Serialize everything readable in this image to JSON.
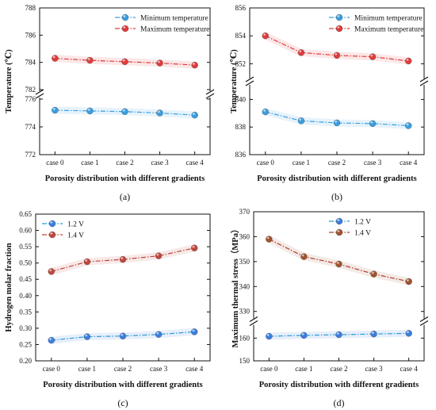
{
  "chart_data": [
    {
      "type": "line",
      "panel_label": "(a)",
      "xlabel": "Porosity distribution with different gradients",
      "ylabel": "Temperature (℃)",
      "categories": [
        "case 0",
        "case 1",
        "case 2",
        "case 3",
        "case 4"
      ],
      "axis_break": true,
      "y_upper": {
        "range": [
          782,
          788
        ],
        "ticks": [
          "782",
          "784",
          "786",
          "788"
        ]
      },
      "y_lower": {
        "range": [
          772,
          776
        ],
        "ticks": [
          "772",
          "774",
          "776"
        ]
      },
      "legend_position": "top-right",
      "series": [
        {
          "name": "Minimum temperature",
          "color": "#3a9ee0",
          "line_color": "#3a9ee0",
          "segment": "lower",
          "values": [
            775.2,
            775.15,
            775.1,
            775.0,
            774.85
          ]
        },
        {
          "name": "Maximum temperature",
          "color": "#e03a3a",
          "line_color": "#e03a3a",
          "segment": "upper",
          "values": [
            784.3,
            784.15,
            784.05,
            783.95,
            783.8
          ]
        }
      ]
    },
    {
      "type": "line",
      "panel_label": "(b)",
      "xlabel": "Porosity distribution with different gradients",
      "ylabel": "Temperature (℃)",
      "categories": [
        "case 0",
        "case 1",
        "case 2",
        "case 3",
        "case 4"
      ],
      "axis_break": true,
      "y_upper": {
        "range": [
          851,
          856
        ],
        "ticks": [
          "852",
          "854",
          "856"
        ]
      },
      "y_lower": {
        "range": [
          836,
          841
        ],
        "ticks": [
          "836",
          "838",
          "840"
        ]
      },
      "legend_position": "top-right",
      "series": [
        {
          "name": "Minimum temperature",
          "color": "#3a9ee0",
          "line_color": "#3a9ee0",
          "segment": "lower",
          "values": [
            839.1,
            838.45,
            838.3,
            838.25,
            838.1
          ]
        },
        {
          "name": "Maximum temperature",
          "color": "#e03a3a",
          "line_color": "#e03a3a",
          "segment": "upper",
          "values": [
            854.0,
            852.8,
            852.6,
            852.5,
            852.2
          ]
        }
      ]
    },
    {
      "type": "line",
      "panel_label": "(c)",
      "xlabel": "Porosity distribution with different gradients",
      "ylabel": "Hydrogen molar fraction",
      "categories": [
        "case 0",
        "case 1",
        "case 2",
        "case 3",
        "case 4"
      ],
      "axis_break": false,
      "ylim": [
        0.2,
        0.65
      ],
      "yticks": [
        "0.20",
        "0.25",
        "0.30",
        "0.35",
        "0.40",
        "0.45",
        "0.50",
        "0.55",
        "0.60",
        "0.65"
      ],
      "legend_position": "top-left",
      "series": [
        {
          "name": "1.2 V",
          "color": "#3a7ee0",
          "line_color": "#2a9ed8",
          "values": [
            0.263,
            0.274,
            0.276,
            0.281,
            0.289
          ]
        },
        {
          "name": "1.4 V",
          "color": "#c0473d",
          "line_color": "#c0473d",
          "values": [
            0.474,
            0.504,
            0.511,
            0.522,
            0.546
          ]
        }
      ]
    },
    {
      "type": "line",
      "panel_label": "(d)",
      "xlabel": "Porosity distribution with different gradients",
      "ylabel": "Maximum thermal stress（MPa）",
      "categories": [
        "case 0",
        "case 1",
        "case 2",
        "case 3",
        "case 4"
      ],
      "axis_break": true,
      "y_upper": {
        "range": [
          328,
          370
        ],
        "ticks": [
          "330",
          "340",
          "350",
          "360",
          "370"
        ]
      },
      "y_lower": {
        "range": [
          150,
          165
        ],
        "ticks": [
          "150",
          "160"
        ]
      },
      "legend_position": "top-right",
      "series": [
        {
          "name": "1.2 V",
          "color": "#3a7ee0",
          "line_color": "#2a9ed8",
          "segment": "lower",
          "values": [
            160.8,
            161.2,
            161.5,
            161.8,
            162.1
          ]
        },
        {
          "name": "1.4 V",
          "color": "#a0522d",
          "line_color": "#b03a2e",
          "segment": "upper",
          "values": [
            359.0,
            352.0,
            349.0,
            345.0,
            342.0
          ]
        }
      ]
    }
  ]
}
